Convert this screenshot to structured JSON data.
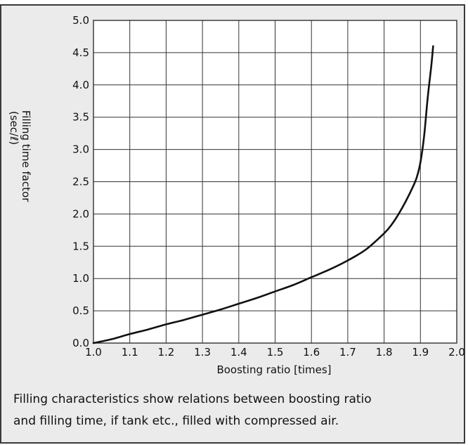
{
  "chart_data": {
    "type": "line",
    "xlabel": "Boosting ratio [times]",
    "ylabel": "Filling time factor",
    "yunit": "(sec/ℓ)",
    "xlim": [
      1.0,
      2.0
    ],
    "ylim": [
      0.0,
      5.0
    ],
    "xticks": [
      "1.0",
      "1.1",
      "1.2",
      "1.3",
      "1.4",
      "1.5",
      "1.6",
      "1.7",
      "1.8",
      "1.9",
      "2.0"
    ],
    "yticks": [
      "0.0",
      "0.5",
      "1.0",
      "1.5",
      "2.0",
      "2.5",
      "3.0",
      "3.5",
      "4.0",
      "4.5",
      "5.0"
    ],
    "grid": true,
    "series": [
      {
        "color": "#111111",
        "x": [
          1.0,
          1.05,
          1.1,
          1.15,
          1.2,
          1.25,
          1.3,
          1.35,
          1.4,
          1.45,
          1.5,
          1.55,
          1.6,
          1.65,
          1.7,
          1.75,
          1.8,
          1.82,
          1.84,
          1.86,
          1.88,
          1.89,
          1.9,
          1.91,
          1.92,
          1.93,
          1.935
        ],
        "y": [
          0.0,
          0.06,
          0.14,
          0.21,
          0.29,
          0.36,
          0.44,
          0.52,
          0.61,
          0.7,
          0.8,
          0.9,
          1.02,
          1.14,
          1.28,
          1.45,
          1.7,
          1.83,
          2.0,
          2.2,
          2.43,
          2.57,
          2.8,
          3.2,
          3.8,
          4.3,
          4.6
        ]
      }
    ]
  },
  "caption": {
    "line1": "Filling characteristics show relations between boosting ratio",
    "line2": "and filling time, if tank etc., filled with compressed air."
  }
}
